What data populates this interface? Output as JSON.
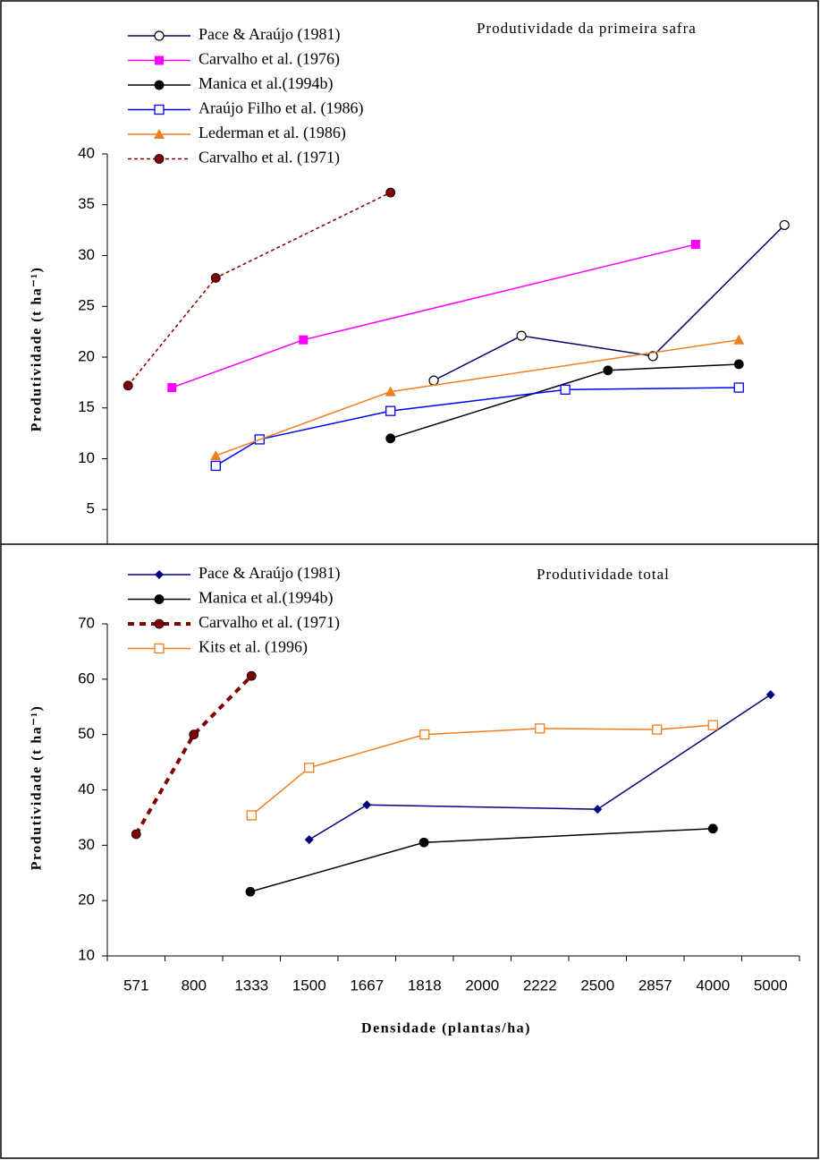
{
  "chart_data": [
    {
      "type": "line",
      "title": "Produtividade da  primeira safra",
      "ylabel": "Produtividade (t ha⁻¹)",
      "xlim": [
        0,
        12
      ],
      "ylim": [
        0,
        40
      ],
      "yticks": [
        5,
        10,
        15,
        20,
        25,
        30,
        35,
        40
      ],
      "series": [
        {
          "name": "Pace & Araújo (1981)",
          "color": "#000066",
          "marker": "open-circle",
          "dash": false,
          "x": [
            5.66,
            7.18,
            9.46,
            11.74
          ],
          "values": [
            17.7,
            22.1,
            20.1,
            33.0
          ]
        },
        {
          "name": "Carvalho et al. (1976)",
          "color": "#ff00ff",
          "marker": "square",
          "dash": false,
          "x": [
            1.12,
            3.4,
            10.2
          ],
          "values": [
            17.0,
            21.7,
            31.1
          ]
        },
        {
          "name": "Manica et al.(1994b)",
          "color": "#000000",
          "marker": "circle",
          "dash": false,
          "x": [
            4.91,
            8.68,
            10.95
          ],
          "values": [
            12.0,
            18.7,
            19.3
          ]
        },
        {
          "name": "Araújo Filho et al. (1986)",
          "color": "#0000ff",
          "marker": "open-square",
          "dash": false,
          "x": [
            1.88,
            2.64,
            4.91,
            7.94,
            10.95
          ],
          "values": [
            9.3,
            11.9,
            14.7,
            16.8,
            17.0
          ]
        },
        {
          "name": "Lederman et al. (1986)",
          "color": "#f07d1e",
          "marker": "triangle",
          "dash": false,
          "x": [
            1.88,
            4.91,
            10.95
          ],
          "values": [
            10.3,
            16.6,
            21.7
          ]
        },
        {
          "name": "Carvalho et al. (1971)",
          "color": "#800000",
          "marker": "circle",
          "dash": true,
          "x": [
            0.36,
            1.88,
            4.91
          ],
          "values": [
            17.2,
            27.8,
            36.2
          ]
        }
      ]
    },
    {
      "type": "line",
      "title": "Produtividade total",
      "ylabel": "Produtividade (t ha⁻¹)",
      "xlabel": "Densidade (plantas/ha)",
      "categories": [
        "571",
        "800",
        "1333",
        "1500",
        "1667",
        "1818",
        "2000",
        "2222",
        "2500",
        "2857",
        "4000",
        "5000"
      ],
      "xlim": [
        0,
        12
      ],
      "xticks": [
        0,
        1,
        2,
        3,
        4,
        5,
        6,
        7,
        8,
        9,
        10,
        11,
        12
      ],
      "ylim": [
        10,
        70
      ],
      "yticks": [
        10,
        20,
        30,
        40,
        50,
        60,
        70
      ],
      "series": [
        {
          "name": "Pace & Araújo (1981)",
          "color": "#000080",
          "marker": "diamond",
          "dash": false,
          "x": [
            3.5,
            4.5,
            8.5,
            11.5
          ],
          "values": [
            31.0,
            37.3,
            36.5,
            57.2
          ]
        },
        {
          "name": "Manica et al.(1994b)",
          "color": "#000000",
          "marker": "circle",
          "dash": false,
          "x": [
            2.48,
            5.49,
            10.5
          ],
          "values": [
            21.6,
            30.5,
            33.0
          ]
        },
        {
          "name": "Carvalho et al. (1971)",
          "color": "#800000",
          "marker": "circle",
          "dash": true,
          "x": [
            0.5,
            1.5,
            2.5
          ],
          "values": [
            32.0,
            50.0,
            60.6
          ]
        },
        {
          "name": "Kits et al. (1996)",
          "color": "#f07d1e",
          "marker": "open-square",
          "dash": false,
          "x": [
            2.5,
            3.5,
            5.5,
            7.5,
            9.53,
            10.5
          ],
          "values": [
            35.4,
            44.0,
            50.0,
            51.1,
            50.9,
            51.7
          ]
        }
      ]
    }
  ]
}
